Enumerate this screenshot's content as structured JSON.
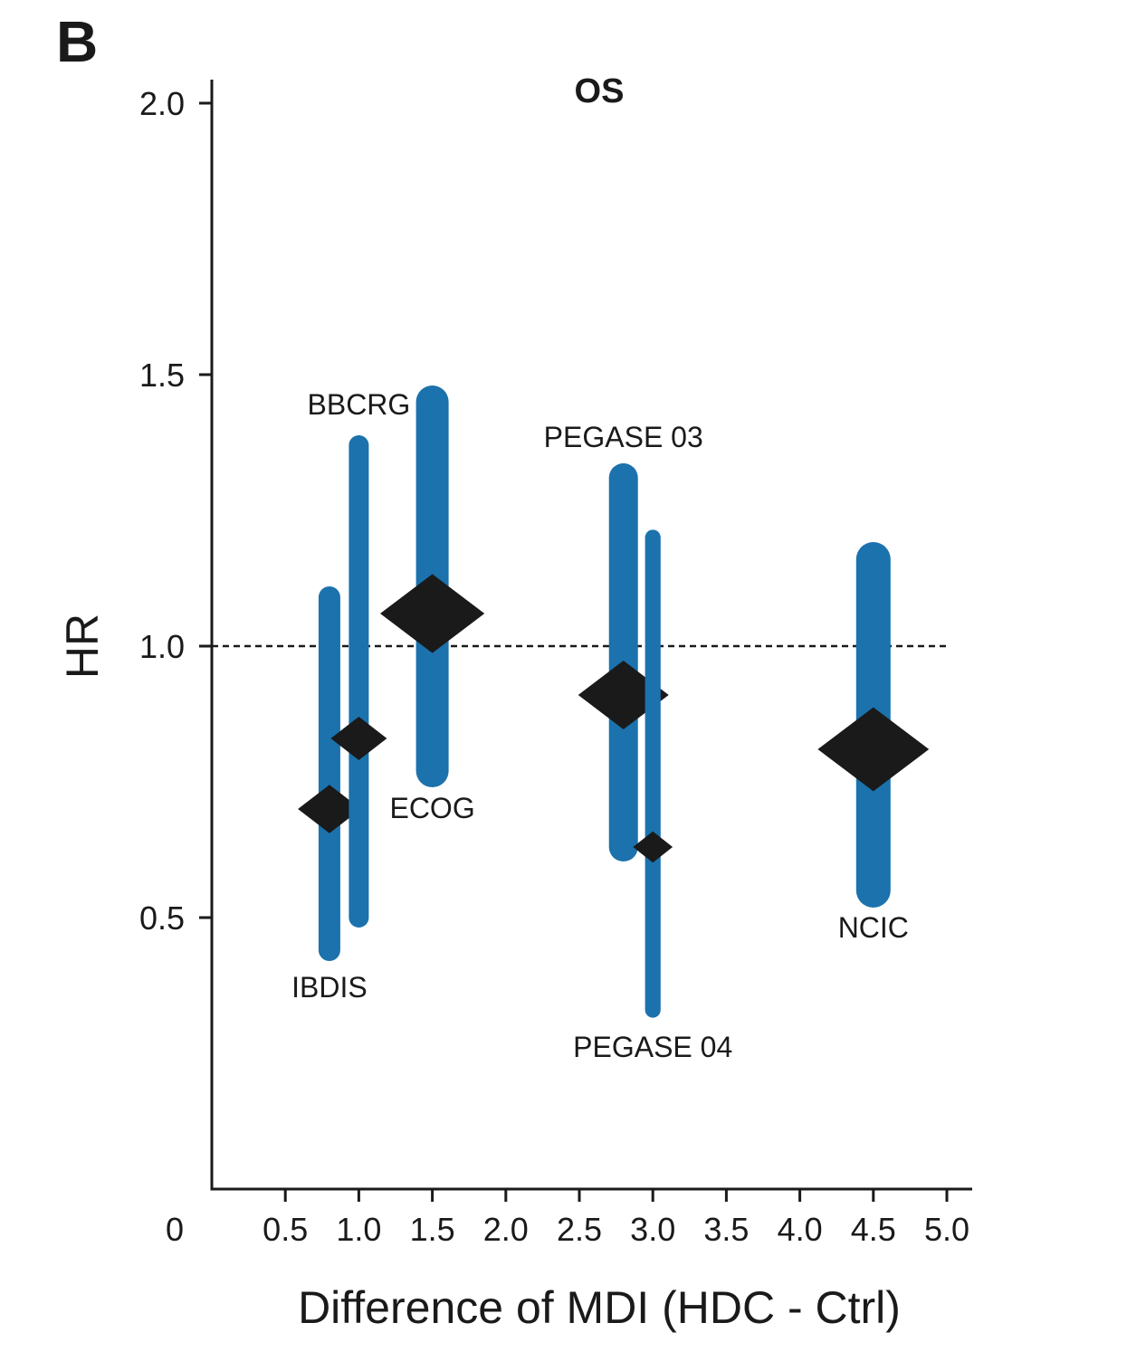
{
  "panel_label": "B",
  "chart_data": {
    "type": "scatter",
    "title": "OS",
    "xlabel": "Difference of MDI (HDC - Ctrl)",
    "ylabel": "HR",
    "xlim": [
      0,
      5.0
    ],
    "ylim": [
      0,
      2.0
    ],
    "x_ticks": [
      0.5,
      1.0,
      1.5,
      2.0,
      2.5,
      3.0,
      3.5,
      4.0,
      4.5,
      5.0
    ],
    "x_tick_labels": [
      "0.5",
      "1.0",
      "1.5",
      "2.0",
      "2.5",
      "3.0",
      "3.5",
      "4.0",
      "4.5",
      "5.0"
    ],
    "x_origin_label": "0",
    "y_ticks": [
      0.5,
      1.0,
      1.5,
      2.0
    ],
    "y_tick_labels": [
      "0.5",
      "1.0",
      "1.5",
      "2.0"
    ],
    "reference_line": {
      "y": 1.0,
      "style": "dashed"
    },
    "colors": {
      "interval": "#1b72ad",
      "point": "#1a1a1a",
      "axis": "#1a1a1a"
    },
    "studies": [
      {
        "name": "IBDIS",
        "x": 0.8,
        "hr": 0.7,
        "lower": 0.44,
        "upper": 1.09,
        "weight": 0.3,
        "label_pos": "below"
      },
      {
        "name": "BBCRG",
        "x": 1.0,
        "hr": 0.83,
        "lower": 0.5,
        "upper": 1.37,
        "weight": 0.25,
        "label_pos": "above"
      },
      {
        "name": "ECOG",
        "x": 1.5,
        "hr": 1.06,
        "lower": 0.77,
        "upper": 1.45,
        "weight": 0.6,
        "label_pos": "below"
      },
      {
        "name": "PEGASE 03",
        "x": 2.8,
        "hr": 0.91,
        "lower": 0.63,
        "upper": 1.31,
        "weight": 0.5,
        "label_pos": "above"
      },
      {
        "name": "PEGASE 04",
        "x": 3.0,
        "hr": 0.63,
        "lower": 0.33,
        "upper": 1.2,
        "weight": 0.13,
        "label_pos": "below"
      },
      {
        "name": "NCIC",
        "x": 4.5,
        "hr": 0.81,
        "lower": 0.55,
        "upper": 1.16,
        "weight": 0.65,
        "label_pos": "below"
      }
    ]
  }
}
